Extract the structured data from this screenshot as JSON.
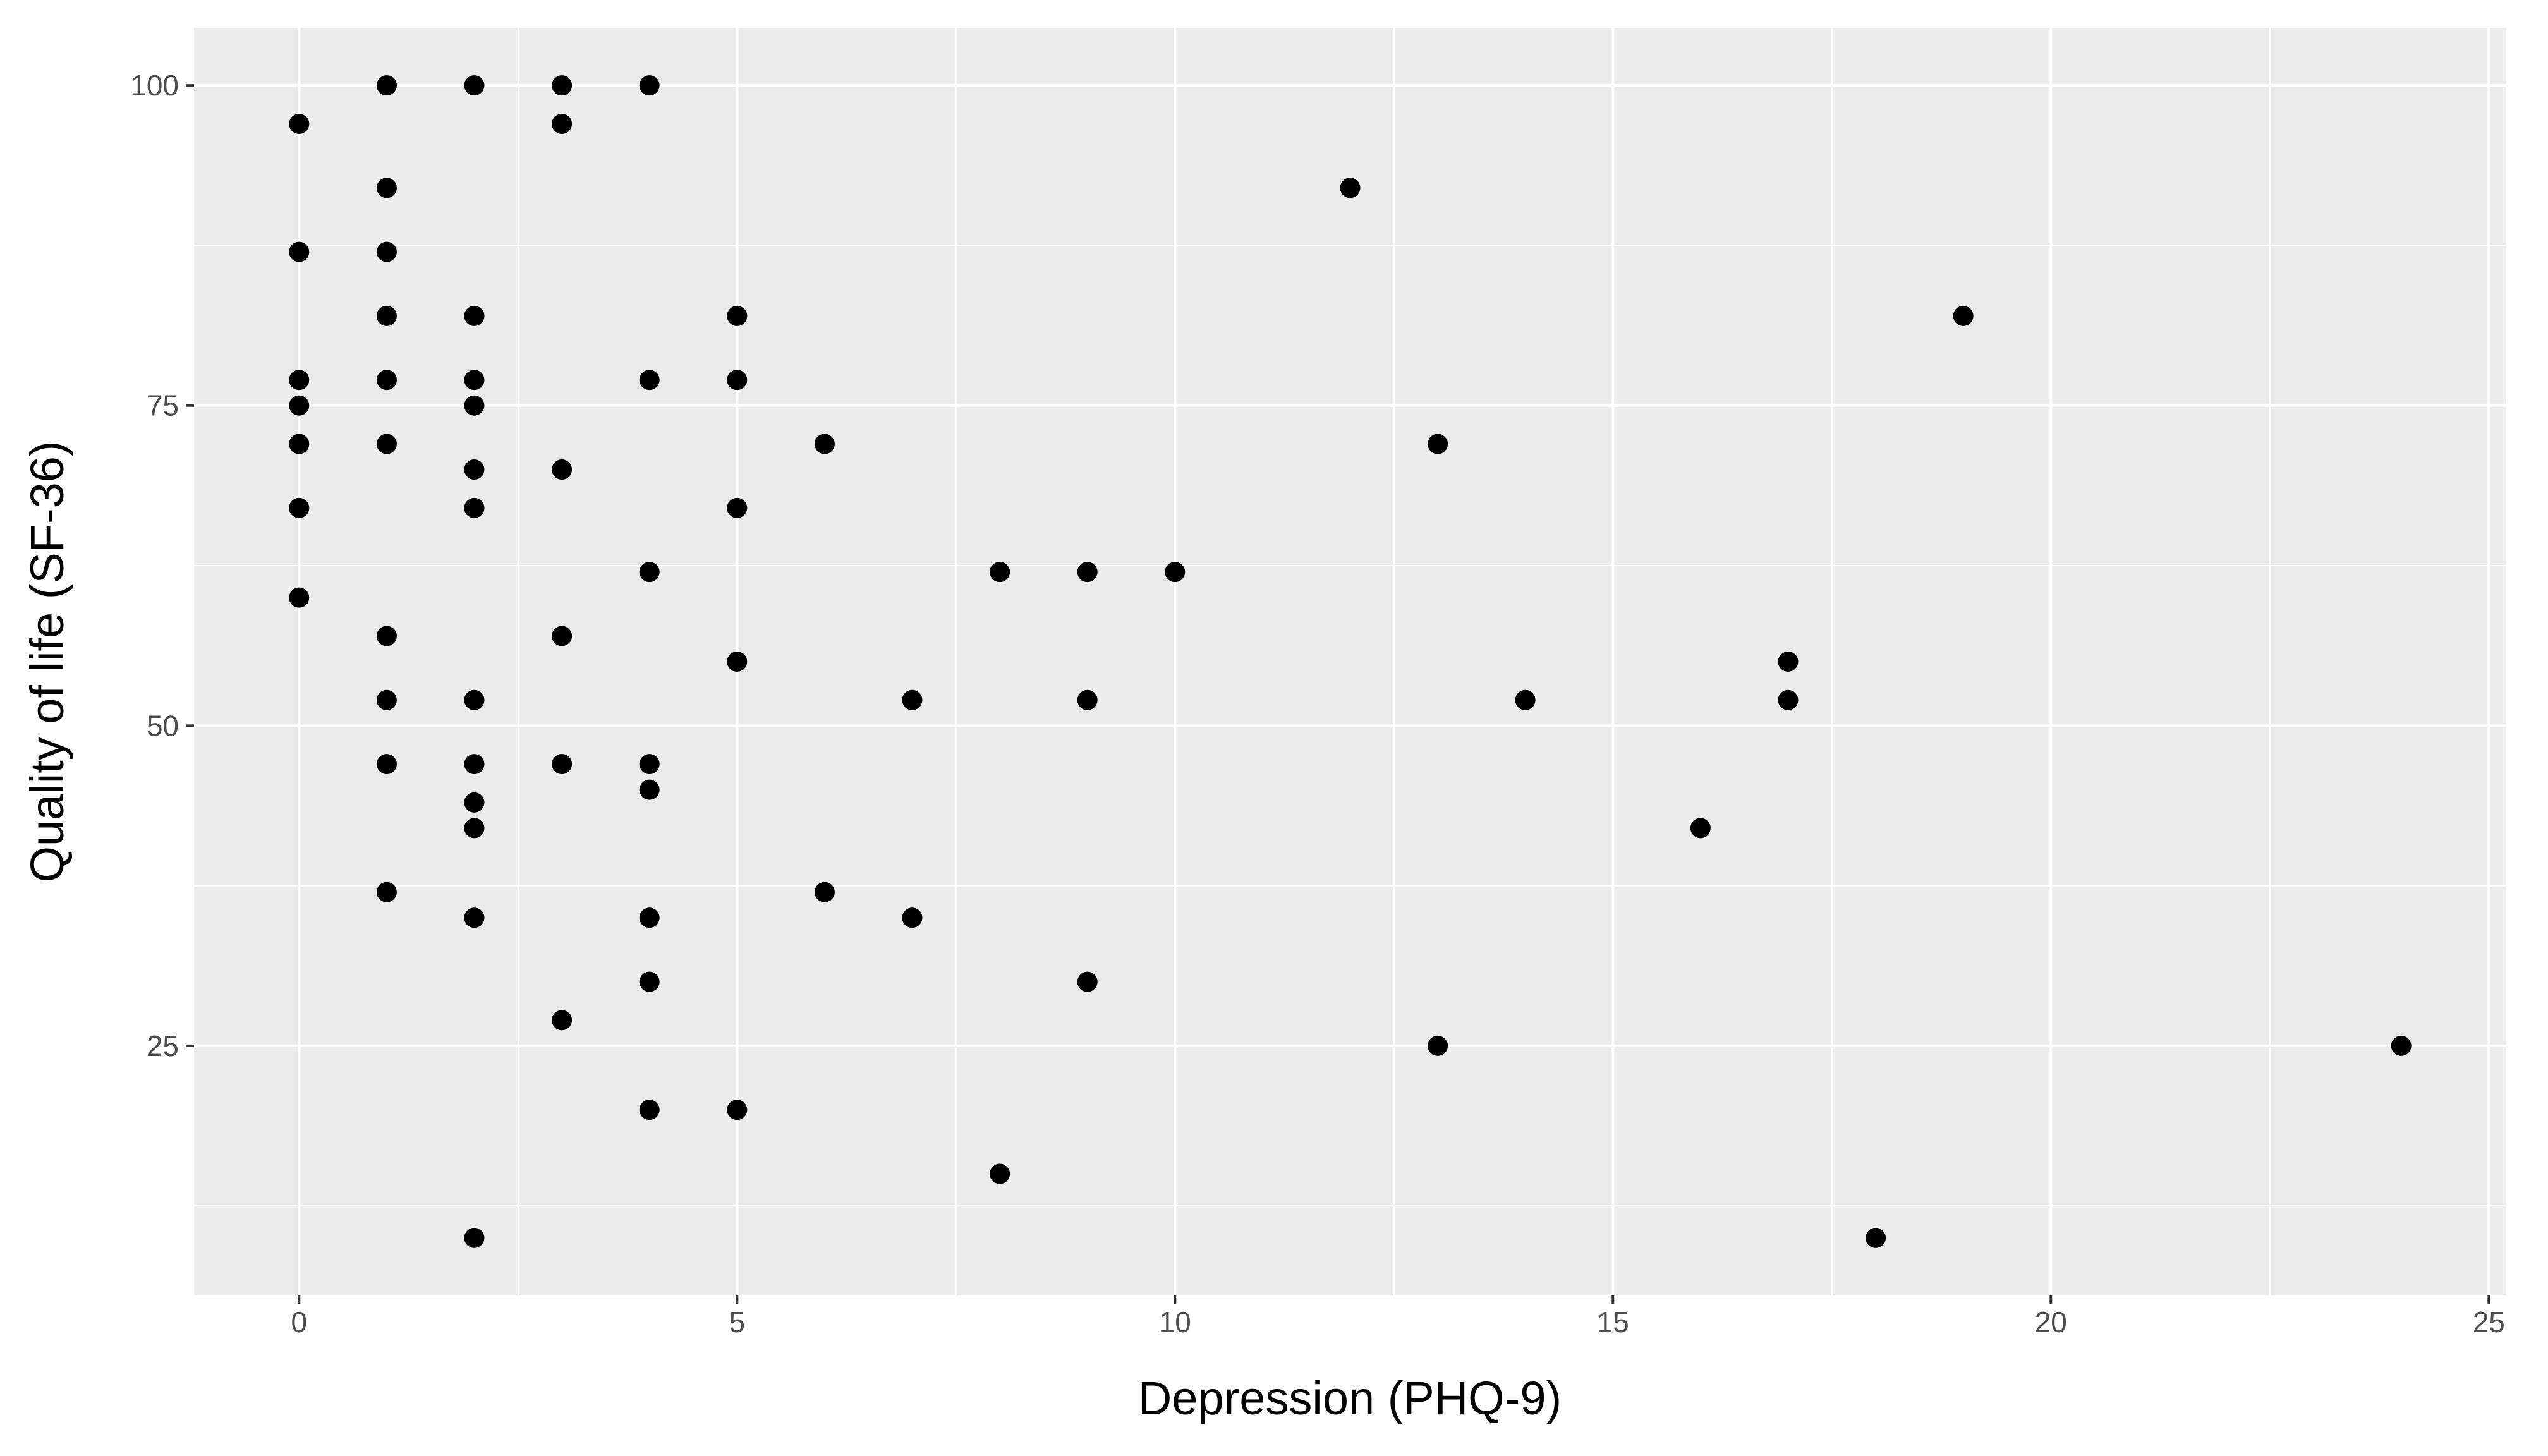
{
  "chart_data": {
    "type": "scatter",
    "title": "",
    "xlabel": "Depression (PHQ-9)",
    "ylabel": "Quality of life (SF-36)",
    "xlim": [
      -1.2,
      25.2
    ],
    "ylim": [
      5.5,
      104.5
    ],
    "x_ticks": [
      0,
      5,
      10,
      15,
      20,
      25
    ],
    "y_ticks": [
      25,
      50,
      75,
      100
    ],
    "grid": true,
    "legend": "none",
    "colors": {
      "panel": "#ebebeb",
      "grid": "#ffffff",
      "point": "#000000",
      "tick_text": "#4d4d4d",
      "axis_text": "#000000"
    },
    "points": [
      {
        "x": 0,
        "y": 97
      },
      {
        "x": 0,
        "y": 87
      },
      {
        "x": 0,
        "y": 77
      },
      {
        "x": 0,
        "y": 75
      },
      {
        "x": 0,
        "y": 72
      },
      {
        "x": 0,
        "y": 67
      },
      {
        "x": 0,
        "y": 60
      },
      {
        "x": 1,
        "y": 100
      },
      {
        "x": 1,
        "y": 92
      },
      {
        "x": 1,
        "y": 87
      },
      {
        "x": 1,
        "y": 82
      },
      {
        "x": 1,
        "y": 77
      },
      {
        "x": 1,
        "y": 72
      },
      {
        "x": 1,
        "y": 57
      },
      {
        "x": 1,
        "y": 52
      },
      {
        "x": 1,
        "y": 47
      },
      {
        "x": 1,
        "y": 37
      },
      {
        "x": 2,
        "y": 100
      },
      {
        "x": 2,
        "y": 82
      },
      {
        "x": 2,
        "y": 77
      },
      {
        "x": 2,
        "y": 75
      },
      {
        "x": 2,
        "y": 70
      },
      {
        "x": 2,
        "y": 67
      },
      {
        "x": 2,
        "y": 52
      },
      {
        "x": 2,
        "y": 47
      },
      {
        "x": 2,
        "y": 44
      },
      {
        "x": 2,
        "y": 42
      },
      {
        "x": 2,
        "y": 35
      },
      {
        "x": 2,
        "y": 10
      },
      {
        "x": 3,
        "y": 100
      },
      {
        "x": 3,
        "y": 97
      },
      {
        "x": 3,
        "y": 70
      },
      {
        "x": 3,
        "y": 57
      },
      {
        "x": 3,
        "y": 47
      },
      {
        "x": 3,
        "y": 27
      },
      {
        "x": 4,
        "y": 100
      },
      {
        "x": 4,
        "y": 77
      },
      {
        "x": 4,
        "y": 62
      },
      {
        "x": 4,
        "y": 47
      },
      {
        "x": 4,
        "y": 45
      },
      {
        "x": 4,
        "y": 35
      },
      {
        "x": 4,
        "y": 30
      },
      {
        "x": 4,
        "y": 20
      },
      {
        "x": 5,
        "y": 82
      },
      {
        "x": 5,
        "y": 77
      },
      {
        "x": 5,
        "y": 67
      },
      {
        "x": 5,
        "y": 55
      },
      {
        "x": 5,
        "y": 20
      },
      {
        "x": 6,
        "y": 72
      },
      {
        "x": 6,
        "y": 37
      },
      {
        "x": 7,
        "y": 52
      },
      {
        "x": 7,
        "y": 35
      },
      {
        "x": 8,
        "y": 62
      },
      {
        "x": 8,
        "y": 15
      },
      {
        "x": 9,
        "y": 62
      },
      {
        "x": 9,
        "y": 52
      },
      {
        "x": 9,
        "y": 30
      },
      {
        "x": 10,
        "y": 62
      },
      {
        "x": 12,
        "y": 92
      },
      {
        "x": 13,
        "y": 72
      },
      {
        "x": 13,
        "y": 25
      },
      {
        "x": 14,
        "y": 52
      },
      {
        "x": 16,
        "y": 42
      },
      {
        "x": 17,
        "y": 55
      },
      {
        "x": 17,
        "y": 52
      },
      {
        "x": 18,
        "y": 10
      },
      {
        "x": 19,
        "y": 82
      },
      {
        "x": 24,
        "y": 25
      }
    ]
  }
}
